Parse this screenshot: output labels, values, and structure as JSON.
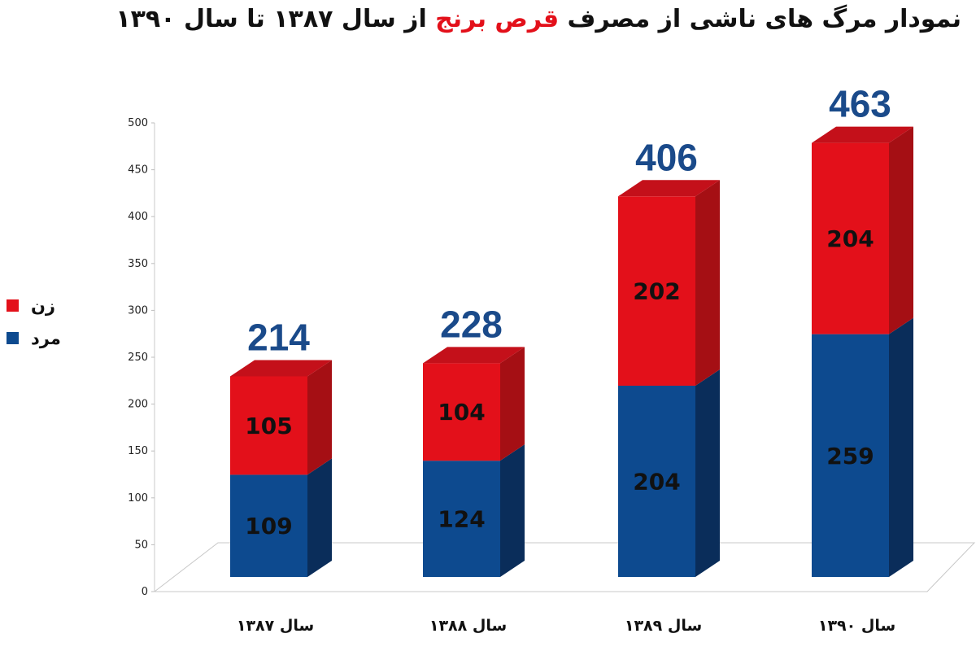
{
  "title": {
    "before": "نمودار مرگ های ناشی از مصرف ",
    "highlight": "قرص برنج",
    "after": " از سال ۱۳۸۷ تا سال ۱۳۹۰"
  },
  "colors": {
    "female": "#e3101a",
    "female_side": "#a50f14",
    "female_top": "#c4101a",
    "male": "#0d4a8f",
    "male_side": "#0a2d5a",
    "total_text": "#1a4a8a"
  },
  "chart_data": {
    "type": "bar",
    "stacked": true,
    "categories": [
      "سال ۱۳۸۷",
      "سال ۱۳۸۸",
      "سال ۱۳۸۹",
      "سال ۱۳۹۰"
    ],
    "series": [
      {
        "name": "مرد",
        "values": [
          109,
          124,
          204,
          259
        ]
      },
      {
        "name": "زن",
        "values": [
          105,
          104,
          202,
          204
        ]
      }
    ],
    "totals": [
      214,
      228,
      406,
      463
    ],
    "ylim": [
      0,
      500
    ],
    "yticks": [
      0,
      50,
      100,
      150,
      200,
      250,
      300,
      350,
      400,
      450,
      500
    ],
    "grid": false,
    "legend_position": "left",
    "legend": [
      {
        "name": "زن",
        "color_key": "female"
      },
      {
        "name": "مرد",
        "color_key": "male"
      }
    ]
  }
}
